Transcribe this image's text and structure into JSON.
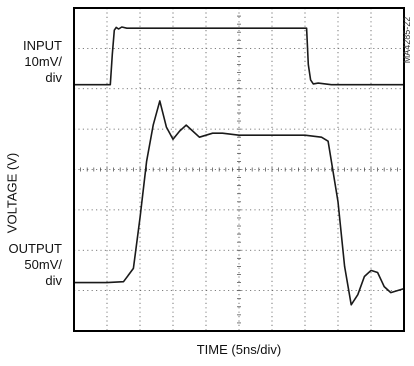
{
  "chart_data": {
    "type": "line",
    "title": "",
    "xlabel": "TIME (5ns/div)",
    "ylabel": "VOLTAGE (V)",
    "x_divisions": 10,
    "y_divisions": 8,
    "xlim": [
      0,
      10
    ],
    "ylim": [
      0,
      8
    ],
    "grid": true,
    "series": [
      {
        "name": "INPUT",
        "scale": "10mV/div",
        "x": [
          0,
          1.1,
          1.16,
          1.22,
          1.28,
          1.35,
          1.45,
          1.6,
          2.0,
          4.0,
          6.0,
          7.05,
          7.1,
          7.17,
          7.25,
          7.4,
          7.8,
          8.5,
          10
        ],
        "y": [
          6.1,
          6.1,
          6.85,
          7.45,
          7.52,
          7.48,
          7.53,
          7.5,
          7.5,
          7.5,
          7.5,
          7.5,
          6.6,
          6.22,
          6.12,
          6.14,
          6.1,
          6.1,
          6.1
        ]
      },
      {
        "name": "OUTPUT",
        "scale": "50mV/div",
        "x": [
          0,
          1.0,
          1.5,
          1.8,
          2.0,
          2.2,
          2.4,
          2.6,
          2.8,
          3.0,
          3.2,
          3.4,
          3.6,
          3.8,
          4.0,
          4.2,
          4.5,
          5.0,
          5.5,
          6.0,
          6.5,
          7.0,
          7.5,
          7.7,
          8.0,
          8.2,
          8.4,
          8.6,
          8.8,
          9.0,
          9.2,
          9.4,
          9.6,
          9.8,
          10
        ],
        "y": [
          1.2,
          1.2,
          1.22,
          1.55,
          2.8,
          4.2,
          5.1,
          5.7,
          5.05,
          4.75,
          4.95,
          5.1,
          4.95,
          4.8,
          4.85,
          4.9,
          4.9,
          4.85,
          4.85,
          4.85,
          4.85,
          4.85,
          4.8,
          4.7,
          3.2,
          1.6,
          0.65,
          0.9,
          1.35,
          1.5,
          1.45,
          1.1,
          0.95,
          1.0,
          1.05
        ]
      }
    ]
  },
  "labels": {
    "input_name": "INPUT",
    "input_scale": "10mV/",
    "input_unit": "div",
    "output_name": "OUTPUT",
    "output_scale": "50mV/",
    "output_unit": "div",
    "figure_id": "MA4285-22"
  },
  "colors": {
    "trace": "#1a1a1a",
    "grid": "#555555",
    "frame": "#000000"
  }
}
